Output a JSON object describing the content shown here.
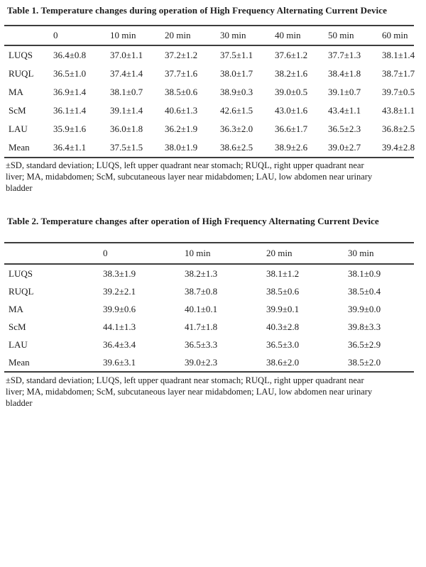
{
  "colors": {
    "background": "#ffffff",
    "text": "#1c1c1c",
    "table_rule": "#3d3d3d"
  },
  "table1": {
    "title": "Table 1. Temperature changes during operation of High Frequency Alternating Current Device",
    "columns": [
      "",
      "0",
      "10 min",
      "20 min",
      "30 min",
      "40 min",
      "50 min",
      "60 min"
    ],
    "rows": [
      {
        "label": "LUQS",
        "values": [
          "36.4±0.8",
          "37.0±1.1",
          "37.2±1.2",
          "37.5±1.1",
          "37.6±1.2",
          "37.7±1.3",
          "38.1±1.4"
        ]
      },
      {
        "label": "RUQL",
        "values": [
          "36.5±1.0",
          "37.4±1.4",
          "37.7±1.6",
          "38.0±1.7",
          "38.2±1.6",
          "38.4±1.8",
          "38.7±1.7"
        ]
      },
      {
        "label": "MA",
        "values": [
          "36.9±1.4",
          "38.1±0.7",
          "38.5±0.6",
          "38.9±0.3",
          "39.0±0.5",
          "39.1±0.7",
          "39.7±0.5"
        ]
      },
      {
        "label": "ScM",
        "values": [
          "36.1±1.4",
          "39.1±1.4",
          "40.6±1.3",
          "42.6±1.5",
          "43.0±1.6",
          "43.4±1.1",
          "43.8±1.1"
        ]
      },
      {
        "label": "LAU",
        "values": [
          "35.9±1.6",
          "36.0±1.8",
          "36.2±1.9",
          "36.3±2.0",
          "36.6±1.7",
          "36.5±2.3",
          "36.8±2.5"
        ]
      },
      {
        "label": "Mean",
        "values": [
          "36.4±1.1",
          "37.5±1.5",
          "38.0±1.9",
          "38.6±2.5",
          "38.9±2.6",
          "39.0±2.7",
          "39.4±2.8"
        ]
      }
    ],
    "footnote_lines": [
      "±SD, standard deviation; LUQS, left upper quadrant near stomach; RUQL, right upper quadrant near",
      "liver; MA, midabdomen; ScM, subcutaneous layer near midabdomen; LAU, low abdomen near urinary",
      "bladder"
    ]
  },
  "table2": {
    "title": "Table 2. Temperature changes after operation of High Frequency Alternating Current Device",
    "columns": [
      "",
      "0",
      "10 min",
      "20 min",
      "30 min"
    ],
    "rows": [
      {
        "label": "LUQS",
        "values": [
          "38.3±1.9",
          "38.2±1.3",
          "38.1±1.2",
          "38.1±0.9"
        ]
      },
      {
        "label": "RUQL",
        "values": [
          "39.2±2.1",
          "38.7±0.8",
          "38.5±0.6",
          "38.5±0.4"
        ]
      },
      {
        "label": "MA",
        "values": [
          "39.9±0.6",
          "40.1±0.1",
          "39.9±0.1",
          "39.9±0.0"
        ]
      },
      {
        "label": "ScM",
        "values": [
          "44.1±1.3",
          "41.7±1.8",
          "40.3±2.8",
          "39.8±3.3"
        ]
      },
      {
        "label": "LAU",
        "values": [
          "36.4±3.4",
          "36.5±3.3",
          "36.5±3.0",
          "36.5±2.9"
        ]
      },
      {
        "label": "Mean",
        "values": [
          "39.6±3.1",
          "39.0±2.3",
          "38.6±2.0",
          "38.5±2.0"
        ]
      }
    ],
    "footnote_lines": [
      "±SD, standard deviation; LUQS, left upper quadrant near stomach; RUQL, right upper quadrant near",
      "liver; MA, midabdomen; ScM, subcutaneous layer near midabdomen; LAU, low abdomen near urinary",
      "bladder"
    ]
  }
}
